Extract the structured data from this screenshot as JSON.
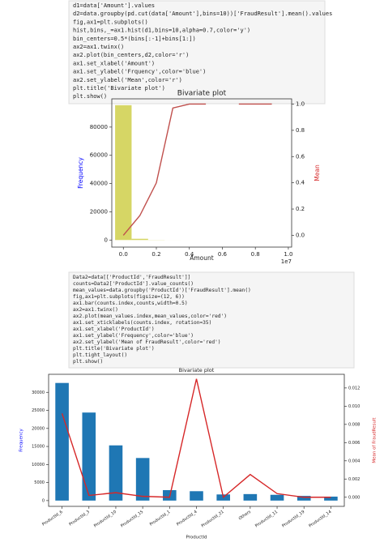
{
  "code_cells": [
    {
      "lines": [
        "d1=data['Amount'].values",
        "d2=data.groupby(pd.cut(data['Amount'],bins=10))['FraudResult'].mean().values",
        "fig,ax1=plt.subplots()",
        "hist,bins,_=ax1.hist(d1,bins=10,alpha=0.7,color='y')",
        "bin_centers=0.5*(bins[:-1]+bins[1:])",
        "ax2=ax1.twinx()",
        "ax2.plot(bin_centers,d2,color='r')",
        "ax1.set_xlabel('Amount')",
        "ax1.set_ylabel('Frquency',color='blue')",
        "ax2.set_ylabel('Mean',color='r')",
        "plt.title('Bivariate plot')",
        "plt.show()"
      ]
    },
    {
      "lines": [
        "Data2=data[['ProductId','FraudResult']]",
        "counts=Data2['ProductId'].value_counts()",
        "mean_values=data.groupby('ProductId')['FraudResult'].mean()",
        "fig,ax1=plt.subplots(figsize=(12, 6))",
        "ax1.bar(counts.index,counts,width=0.5)",
        "ax2=ax1.twinx()",
        "ax2.plot(mean_values.index,mean_values,color='red')",
        "ax1.set_xticklabels(counts.index, rotation=35)",
        "ax1.set_xlabel('ProductId')",
        "ax1.set_ylabel('Frequency',color='blue')",
        "ax2.set_ylabel('Mean of FraudResult',color='red')",
        "plt.title('Bivariate plot')",
        "plt.tight_layout()",
        "plt.show()"
      ]
    }
  ],
  "chart_data": [
    {
      "type": "histogram",
      "title": "Bivariate plot",
      "x_label": "Amount",
      "x_offset_label": "1e7",
      "y_label": "Frequency",
      "y2_label": "Mean",
      "bins": [
        -0.05,
        0.05,
        0.15,
        0.25,
        0.35,
        0.45,
        0.55,
        0.65,
        0.75,
        0.85,
        0.95
      ],
      "series": [
        {
          "type": "histogram",
          "color": "#c8c832",
          "values": [
            95500,
            900,
            100,
            20,
            5,
            2,
            0,
            1,
            1,
            1
          ]
        },
        {
          "type": "line",
          "axis": "y2",
          "color": "#c0504d",
          "x": [
            0,
            0.1,
            0.2,
            0.3,
            0.4,
            0.5,
            0.6,
            0.7,
            0.8,
            0.9
          ],
          "values": [
            0.0,
            0.15,
            0.4,
            0.97,
            1.0,
            1.0,
            null,
            1.0,
            1.0,
            1.0
          ]
        }
      ],
      "xlim": [
        -0.07,
        1.02
      ],
      "xticks": [
        {
          "value": 0,
          "label": "0.0"
        },
        0.2,
        0.4,
        0.6,
        0.8,
        {
          "value": 1,
          "label": "1.0"
        }
      ],
      "ylim": [
        -5000,
        100000
      ],
      "yticks": [
        0,
        20000,
        40000,
        60000,
        80000
      ],
      "y2lim": [
        -0.09,
        1.04
      ],
      "y2ticks": [
        {
          "value": 0,
          "label": "0.0"
        },
        0.2,
        0.4,
        0.6,
        0.8,
        {
          "value": 1,
          "label": "1.0"
        }
      ]
    },
    {
      "type": "bar",
      "title": "Bivariate plot",
      "x_label": "ProductId",
      "y_label": "Frequency",
      "y2_label": "Mean of FraudResult",
      "categories": [
        "ProductId_6",
        "ProductId_3",
        "ProductId_10",
        "ProductId_15",
        "ProductId_1",
        "ProductId_4",
        "ProductId_21",
        "Others",
        "ProductId_11",
        "ProductId_19",
        "ProductId_14"
      ],
      "series": [
        {
          "type": "bar",
          "color": "#1f77b4",
          "values": [
            32600,
            24400,
            15300,
            11800,
            2900,
            2600,
            1700,
            1800,
            1600,
            1300,
            1100
          ]
        },
        {
          "type": "line",
          "axis": "y2",
          "color": "#d62728",
          "values": [
            0.0092,
            0.0002,
            0.0005,
            0.0001,
            0.0,
            0.013,
            0.0,
            0.0025,
            0.0004,
            0.0,
            0.0
          ]
        }
      ],
      "ylim": [
        -1600,
        35000
      ],
      "yticks": [
        0,
        5000,
        10000,
        15000,
        20000,
        25000,
        30000
      ],
      "y2lim": [
        -0.001,
        0.0135
      ],
      "y2ticks": [
        {
          "value": 0,
          "label": "0.000"
        },
        {
          "value": 0.002,
          "label": "0.002"
        },
        {
          "value": 0.004,
          "label": "0.004"
        },
        {
          "value": 0.006,
          "label": "0.006"
        },
        {
          "value": 0.008,
          "label": "0.008"
        },
        {
          "value": 0.01,
          "label": "0.010"
        },
        {
          "value": 0.012,
          "label": "0.012"
        }
      ]
    }
  ]
}
